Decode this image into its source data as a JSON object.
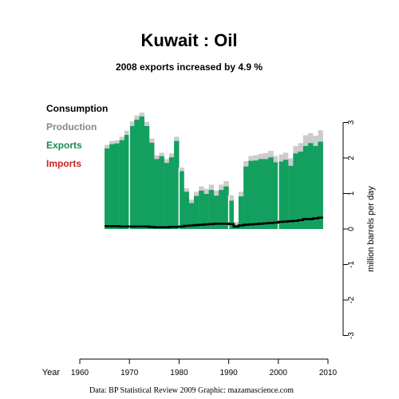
{
  "chart_data": {
    "type": "area",
    "title": "Kuwait :  Oil",
    "subtitle": "2008 exports increased by 4.9 %",
    "ylabel": "million barrels per day",
    "xlabel": "Year",
    "xlim": [
      1960,
      2010
    ],
    "ylim": [
      -3,
      3
    ],
    "x_ticks": [
      1960,
      1970,
      1980,
      1990,
      2000,
      2010
    ],
    "y_ticks": [
      -3,
      -2,
      -1,
      0,
      1,
      2,
      3
    ],
    "decade_lines": [
      1970,
      1980,
      1990,
      2000
    ],
    "legend": [
      {
        "key": "consumption",
        "label": "Consumption",
        "color": "#000000"
      },
      {
        "key": "production",
        "label": "Production",
        "color": "#888888"
      },
      {
        "key": "exports",
        "label": "Exports",
        "color": "#1a8a4f"
      },
      {
        "key": "imports",
        "label": "Imports",
        "color": "#cc2222"
      }
    ],
    "colors": {
      "production": "#cccccc",
      "exports": "#13a05f",
      "consumption": "#000000",
      "decade_line": "#ffffff"
    },
    "years": [
      1965,
      1966,
      1967,
      1968,
      1969,
      1970,
      1971,
      1972,
      1973,
      1974,
      1975,
      1976,
      1977,
      1978,
      1979,
      1980,
      1981,
      1982,
      1983,
      1984,
      1985,
      1986,
      1987,
      1988,
      1989,
      1990,
      1991,
      1992,
      1993,
      1994,
      1995,
      1996,
      1997,
      1998,
      1999,
      2000,
      2001,
      2002,
      2003,
      2004,
      2005,
      2006,
      2007,
      2008
    ],
    "series": [
      {
        "name": "Production",
        "key": "production",
        "values": [
          2.37,
          2.48,
          2.5,
          2.6,
          2.77,
          3.03,
          3.2,
          3.28,
          3.02,
          2.55,
          2.08,
          2.15,
          1.97,
          2.13,
          2.6,
          1.73,
          1.15,
          0.83,
          1.05,
          1.2,
          1.13,
          1.25,
          1.08,
          1.25,
          1.35,
          0.95,
          0.2,
          1.05,
          1.91,
          2.06,
          2.08,
          2.12,
          2.14,
          2.2,
          2.06,
          2.1,
          2.15,
          1.99,
          2.34,
          2.42,
          2.64,
          2.7,
          2.63,
          2.78
        ]
      },
      {
        "name": "Exports",
        "key": "exports",
        "values": [
          2.27,
          2.39,
          2.41,
          2.5,
          2.65,
          2.9,
          3.08,
          3.17,
          2.9,
          2.43,
          1.97,
          2.05,
          1.86,
          2.02,
          2.48,
          1.63,
          1.05,
          0.73,
          0.93,
          1.08,
          0.99,
          1.1,
          0.94,
          1.1,
          1.2,
          0.8,
          0.12,
          0.92,
          1.76,
          1.92,
          1.93,
          1.97,
          1.97,
          2.02,
          1.88,
          1.9,
          1.95,
          1.78,
          2.13,
          2.18,
          2.34,
          2.42,
          2.34,
          2.46
        ]
      },
      {
        "name": "Consumption",
        "key": "consumption",
        "values": [
          0.08,
          0.08,
          0.08,
          0.07,
          0.07,
          0.07,
          0.07,
          0.07,
          0.07,
          0.06,
          0.05,
          0.05,
          0.05,
          0.06,
          0.06,
          0.07,
          0.09,
          0.1,
          0.11,
          0.12,
          0.13,
          0.14,
          0.15,
          0.15,
          0.15,
          0.14,
          0.07,
          0.1,
          0.12,
          0.13,
          0.14,
          0.15,
          0.16,
          0.17,
          0.18,
          0.2,
          0.21,
          0.22,
          0.23,
          0.25,
          0.28,
          0.28,
          0.3,
          0.32
        ]
      }
    ],
    "source_note": "Data: BP Statistical Review 2009    Graphic: mazamascience.com"
  }
}
